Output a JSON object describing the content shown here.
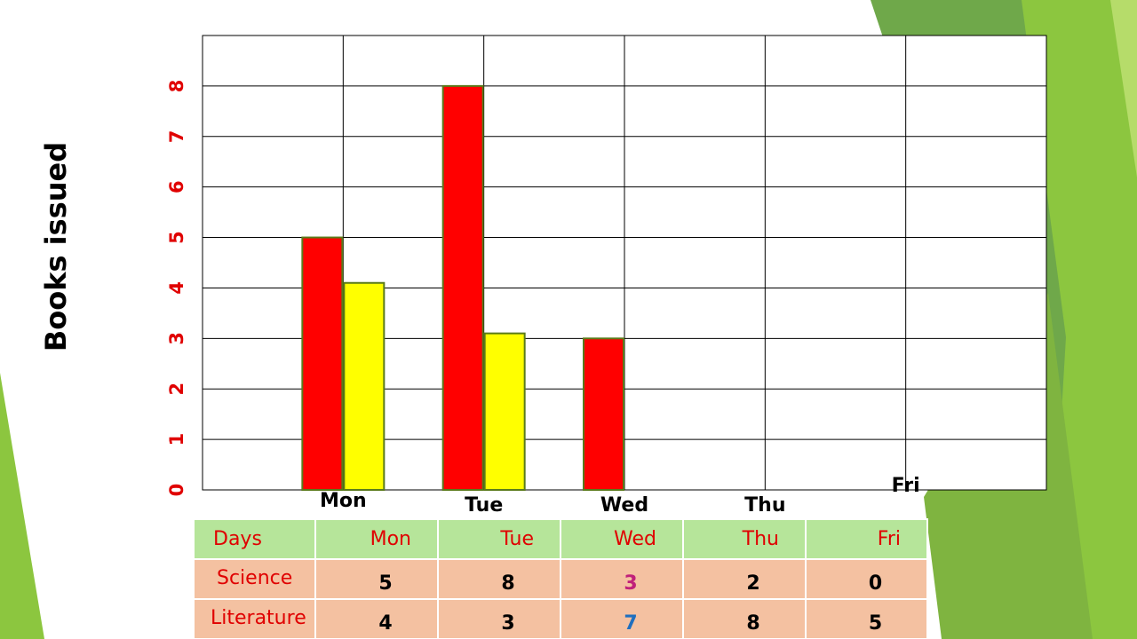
{
  "chart_data": {
    "type": "bar",
    "y_label": "Books issued",
    "categories": [
      "Mon",
      "Tue",
      "Wed",
      "Thu",
      "Fri"
    ],
    "series": [
      {
        "name": "Science",
        "color": "#ff0000",
        "values": [
          5,
          8,
          3,
          null,
          null
        ]
      },
      {
        "name": "Literature",
        "color": "#ffff00",
        "values": [
          4.1,
          3.1,
          null,
          null,
          null
        ]
      }
    ],
    "ylim": [
      0,
      9
    ],
    "yticks": [
      0,
      1,
      2,
      3,
      4,
      5,
      6,
      7,
      8
    ],
    "grid": true
  },
  "table": {
    "header": [
      "Days",
      "Mon",
      "Tue",
      "Wed",
      "Thu",
      "Fri"
    ],
    "rows": [
      [
        "Science",
        5,
        8,
        3,
        2,
        0
      ],
      [
        "Literature",
        4,
        3,
        7,
        8,
        5
      ]
    ]
  }
}
